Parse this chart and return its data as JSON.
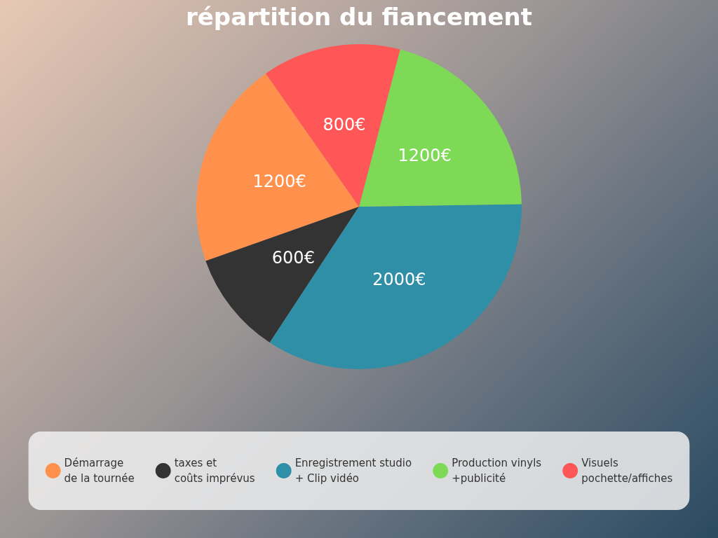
{
  "chart_data": {
    "type": "pie",
    "title": "répartition du fiancement",
    "categories": [
      "Démarrage\nde la tournée",
      "taxes et\ncoûts imprévus",
      "Enregistrement studio\n+ Clip vidéo",
      "Production vinyls\n+publicité",
      "Visuels\npochette/affiches"
    ],
    "values": [
      1200,
      600,
      2000,
      1200,
      800
    ],
    "value_labels": [
      "1200€",
      "600€",
      "2000€",
      "1200€",
      "800€"
    ],
    "colors": [
      "#ff914d",
      "#333333",
      "#2e8fa6",
      "#7ed957",
      "#ff5757"
    ],
    "legend": "bottom"
  }
}
